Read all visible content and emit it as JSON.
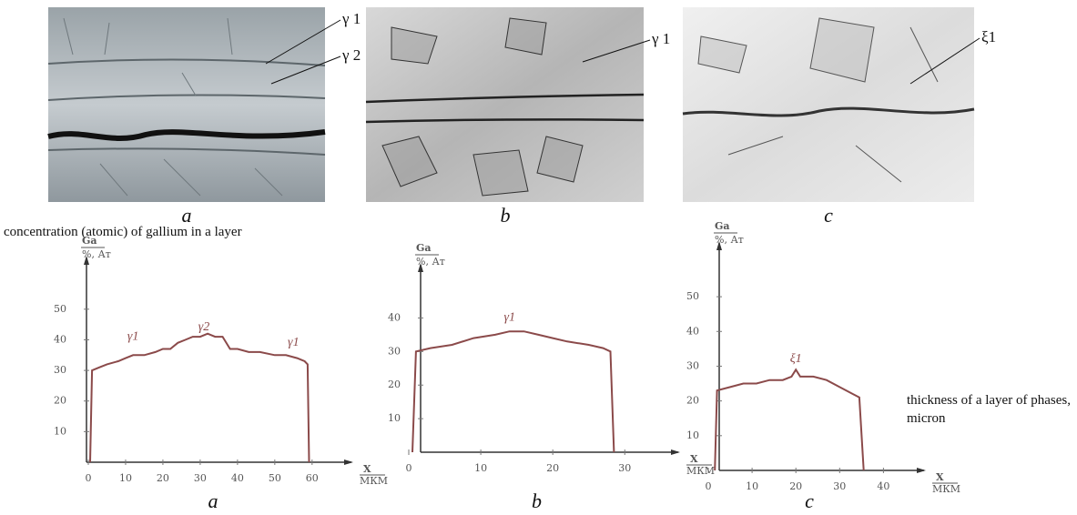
{
  "micrographs": [
    {
      "caption": "a",
      "labels": [
        "γ 1",
        "γ 2"
      ]
    },
    {
      "caption": "b",
      "labels": [
        "γ 1"
      ]
    },
    {
      "caption": "c",
      "labels": [
        "ξ1"
      ]
    }
  ],
  "figure_text": "concentration (atomic) of gallium in a layer",
  "x_axis_note": "thickness of a layer of phases, micron",
  "chart_data": [
    {
      "type": "line",
      "caption": "a",
      "ylabel": "Ga",
      "ylabel_unit": "%, Ат",
      "xlabel": "X",
      "xlabel_unit": "МКМ",
      "color": "#8b4a4a",
      "x": [
        0.5,
        1,
        3,
        5,
        8,
        10,
        12,
        15,
        18,
        20,
        22,
        24,
        26,
        28,
        30,
        32,
        34,
        36,
        38,
        40,
        43,
        46,
        50,
        53,
        56,
        58,
        58.8,
        59.2
      ],
      "values": [
        0,
        30,
        31,
        32,
        33,
        34,
        35,
        35,
        36,
        37,
        37,
        39,
        40,
        41,
        41,
        42,
        41,
        41,
        37,
        37,
        36,
        36,
        35,
        35,
        34,
        33,
        32,
        0
      ],
      "xlim": [
        0,
        62
      ],
      "ylim": [
        0,
        55
      ],
      "xticks": [
        0,
        10,
        20,
        30,
        40,
        50,
        60
      ],
      "yticks": [
        10,
        20,
        30,
        40,
        50
      ],
      "annotations": [
        "γ1",
        "γ2",
        "γ1"
      ]
    },
    {
      "type": "line",
      "caption": "b",
      "ylabel": "Ga",
      "ylabel_unit": "%, Ат",
      "xlabel": "X",
      "xlabel_unit": "МКМ",
      "color": "#8b4a4a",
      "x": [
        0.5,
        1,
        3,
        6,
        9,
        12,
        14,
        16,
        18,
        20,
        22,
        25,
        27,
        28,
        28.5
      ],
      "values": [
        0,
        30,
        31,
        32,
        34,
        35,
        36,
        36,
        35,
        34,
        33,
        32,
        31,
        30,
        0
      ],
      "xlim": [
        0,
        33
      ],
      "ylim": [
        0,
        45
      ],
      "xticks": [
        0,
        10,
        20,
        30
      ],
      "yticks": [
        10,
        20,
        30,
        40
      ],
      "annotations": [
        "γ1"
      ]
    },
    {
      "type": "line",
      "caption": "c",
      "ylabel": "Ga",
      "ylabel_unit": "%, Ат",
      "xlabel": "X",
      "xlabel_unit": "МКМ",
      "color": "#8b4a4a",
      "x": [
        1.5,
        2,
        5,
        8,
        11,
        14,
        17,
        19,
        20,
        21,
        24,
        27,
        30,
        33,
        34.5,
        35.5
      ],
      "values": [
        0,
        23,
        24,
        25,
        25,
        26,
        26,
        27,
        29,
        27,
        27,
        26,
        24,
        22,
        21,
        0
      ],
      "xlim": [
        0,
        42
      ],
      "ylim": [
        0,
        55
      ],
      "xticks": [
        0,
        10,
        20,
        30,
        40
      ],
      "yticks": [
        10,
        20,
        30,
        40,
        50
      ],
      "annotations": [
        "ξ1"
      ]
    }
  ]
}
